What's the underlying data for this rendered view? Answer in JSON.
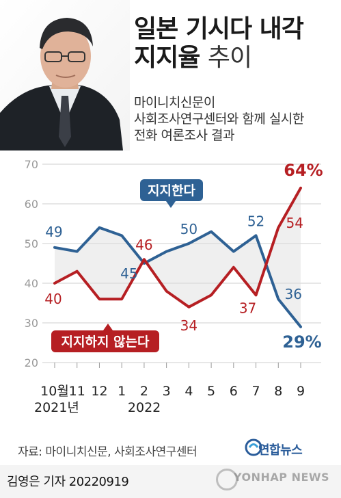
{
  "header": {
    "title_line1": "일본 기시다 내각",
    "title_line2_bold": "지지율",
    "title_line2_light": "추이",
    "subtitle_line1": "마이니치신문이",
    "subtitle_line2": "사회조사연구센터와 함께 실시한",
    "subtitle_line3": "전화 여론조사 결과"
  },
  "chart_data": {
    "type": "line",
    "categories": [
      "10월",
      "11",
      "12",
      "1",
      "2",
      "3",
      "4",
      "5",
      "6",
      "7",
      "8",
      "9"
    ],
    "year_labels": [
      {
        "at": "10월",
        "text": "2021년"
      },
      {
        "at": "2",
        "text": "2022"
      }
    ],
    "ylim": [
      20,
      70
    ],
    "yticks": [
      20,
      30,
      40,
      50,
      60,
      70
    ],
    "grid": true,
    "series": [
      {
        "name": "지지한다",
        "color": "#2e6194",
        "values": [
          49,
          48,
          54,
          52,
          45,
          48,
          50,
          53,
          48,
          52,
          36,
          29
        ],
        "labels": [
          {
            "index": 0,
            "text": "49"
          },
          {
            "index": 4,
            "text": "45"
          },
          {
            "index": 6,
            "text": "50"
          },
          {
            "index": 9,
            "text": "52"
          },
          {
            "index": 10,
            "text": "36"
          },
          {
            "index": 11,
            "text": "29%"
          }
        ]
      },
      {
        "name": "지지하지 않는다",
        "color": "#b61f23",
        "values": [
          40,
          43,
          36,
          36,
          46,
          38,
          34,
          37,
          44,
          37,
          54,
          64
        ],
        "labels": [
          {
            "index": 0,
            "text": "40"
          },
          {
            "index": 4,
            "text": "46"
          },
          {
            "index": 6,
            "text": "34"
          },
          {
            "index": 9,
            "text": "37"
          },
          {
            "index": 10,
            "text": "54"
          },
          {
            "index": 11,
            "text": "64%"
          }
        ]
      }
    ]
  },
  "footer": {
    "source": "자료: 마이니치신문, 사회조사연구센터",
    "logo": "연합뉴스",
    "reporter": "김영은 기자  20220919",
    "watermark": "YONHAP NEWS"
  },
  "colors": {
    "support": "#2e6194",
    "oppose": "#b61f23",
    "band": "#dcdcdc"
  }
}
